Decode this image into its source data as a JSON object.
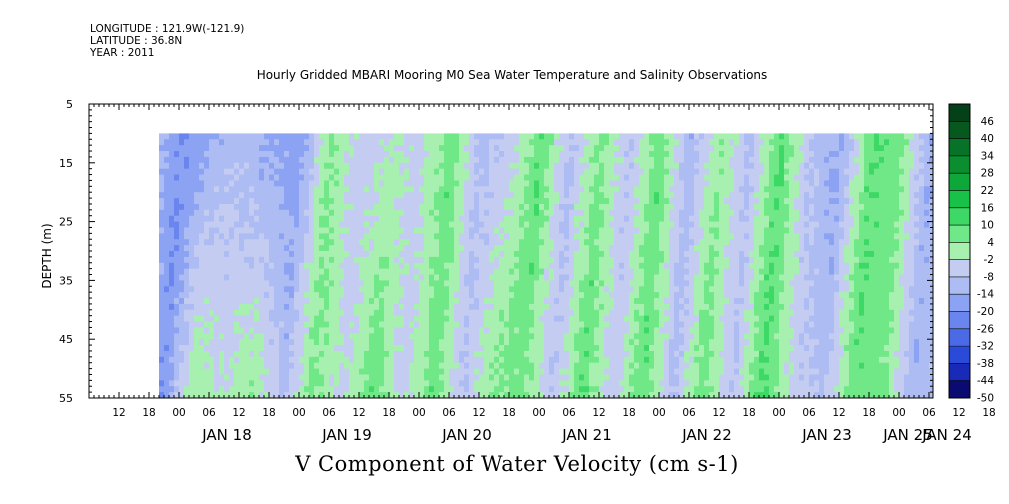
{
  "meta": {
    "longitude": "LONGITUDE : 121.9W(-121.9)",
    "latitude": "LATITUDE : 36.8N",
    "year": "YEAR : 2011"
  },
  "chart_data": {
    "type": "heatmap",
    "title": "Hourly Gridded MBARI Mooring M0 Sea Water Temperature and Salinity Observations",
    "xlabel": "V Component of Water Velocity (cm s-1)",
    "ylabel": "DEPTH (m)",
    "ylim": [
      55,
      5
    ],
    "y_ticks": [
      "5",
      "15",
      "25",
      "35",
      "45",
      "55"
    ],
    "x_hour_ticks": [
      "12",
      "18",
      "00",
      "06",
      "12",
      "18",
      "00",
      "06",
      "12",
      "18",
      "00",
      "06",
      "12",
      "18",
      "00",
      "06",
      "12",
      "18",
      "00",
      "06",
      "12",
      "18",
      "00",
      "06",
      "12",
      "18",
      "00",
      "06",
      "12",
      "18",
      "00",
      "06"
    ],
    "x_date_ticks": [
      "JAN 18",
      "JAN 19",
      "JAN 20",
      "JAN 21",
      "JAN 22",
      "JAN 23",
      "JAN 24",
      "JAN 25"
    ],
    "data_depth_range": [
      10,
      55
    ],
    "colorbar": {
      "levels": [
        "46",
        "40",
        "34",
        "28",
        "22",
        "16",
        "10",
        "4",
        "-2",
        "-8",
        "-14",
        "-20",
        "-26",
        "-32",
        "-38",
        "-44",
        "-50"
      ],
      "range": [
        -50,
        50
      ],
      "colors_low_to_high": [
        "#0a0a70",
        "#1a2ab8",
        "#2a4ad8",
        "#4a6ae6",
        "#6a86ee",
        "#8ca2f2",
        "#aebcf4",
        "#c4ccf2",
        "#a8f0b0",
        "#70e888",
        "#3ed866",
        "#18c248",
        "#0ea83a",
        "#0a8e30",
        "#087228",
        "#06581e",
        "#044018"
      ]
    },
    "v_field_description": "V velocity mostly negative (blue, about -2 to -26 cm/s) with alternating positive (green, about 4 to 16 cm/s) bands",
    "v_time_profile": {
      "time_hours_from_jan18_00": [
        -6,
        0,
        6,
        12,
        18,
        24,
        30,
        36,
        42,
        48,
        54,
        60,
        66,
        72,
        78,
        84,
        90,
        96,
        102,
        108,
        114,
        120,
        126,
        132,
        138,
        144,
        150,
        156,
        162,
        168,
        174,
        180,
        186
      ],
      "surface_v": [
        -8,
        -20,
        -14,
        -10,
        -16,
        -18,
        6,
        -6,
        -2,
        -4,
        8,
        -10,
        -6,
        10,
        -10,
        6,
        -8,
        8,
        -12,
        4,
        -10,
        10,
        -8,
        -16,
        10,
        6,
        -14,
        -6,
        -16,
        -10,
        6,
        10,
        2
      ],
      "bottom_v": [
        -6,
        -20,
        4,
        -2,
        4,
        -10,
        6,
        -4,
        10,
        -6,
        8,
        -8,
        6,
        6,
        -8,
        10,
        -6,
        10,
        -10,
        8,
        -8,
        12,
        -4,
        -10,
        8,
        6,
        -12,
        -8,
        6,
        4,
        12,
        12,
        10
      ]
    }
  }
}
